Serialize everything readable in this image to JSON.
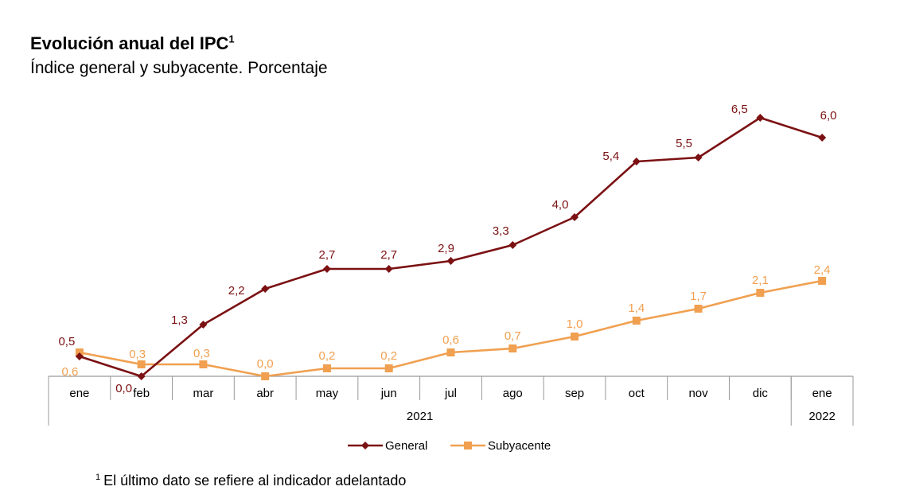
{
  "header": {
    "title": "Evolución anual del IPC",
    "title_sup": "1",
    "subtitle": "Índice general y subyacente. Porcentaje"
  },
  "footnote": {
    "mark": "1",
    "text": "El último dato se refiere al indicador adelantado"
  },
  "colors": {
    "general": "#7B1113",
    "subyacente": "#F0A050",
    "axis": "#999999"
  },
  "chart_data": {
    "type": "line",
    "categories": [
      "ene",
      "feb",
      "mar",
      "abr",
      "may",
      "jun",
      "jul",
      "ago",
      "sep",
      "oct",
      "nov",
      "dic",
      "ene"
    ],
    "year_groups": [
      {
        "label": "2021",
        "start": 0,
        "end": 11
      },
      {
        "label": "2022",
        "start": 12,
        "end": 12
      }
    ],
    "series": [
      {
        "name": "General",
        "values": [
          0.5,
          0.0,
          1.3,
          2.2,
          2.7,
          2.7,
          2.9,
          3.3,
          4.0,
          5.4,
          5.5,
          6.5,
          6.0
        ],
        "labels": [
          "0,5",
          "0,0",
          "1,3",
          "2,2",
          "2,7",
          "2,7",
          "2,9",
          "3,3",
          "4,0",
          "5,4",
          "5,5",
          "6,5",
          "6,0"
        ],
        "marker": "diamond"
      },
      {
        "name": "Subyacente",
        "values": [
          0.6,
          0.3,
          0.3,
          0.0,
          0.2,
          0.2,
          0.6,
          0.7,
          1.0,
          1.4,
          1.7,
          2.1,
          2.4
        ],
        "labels": [
          "0,6",
          "0,3",
          "0,3",
          "0,0",
          "0,2",
          "0,2",
          "0,6",
          "0,7",
          "1,0",
          "1,4",
          "1,7",
          "2,1",
          "2,4"
        ],
        "marker": "square"
      }
    ],
    "ylim": [
      0,
      6.5
    ],
    "grid": false,
    "legend": "bottom-center"
  }
}
